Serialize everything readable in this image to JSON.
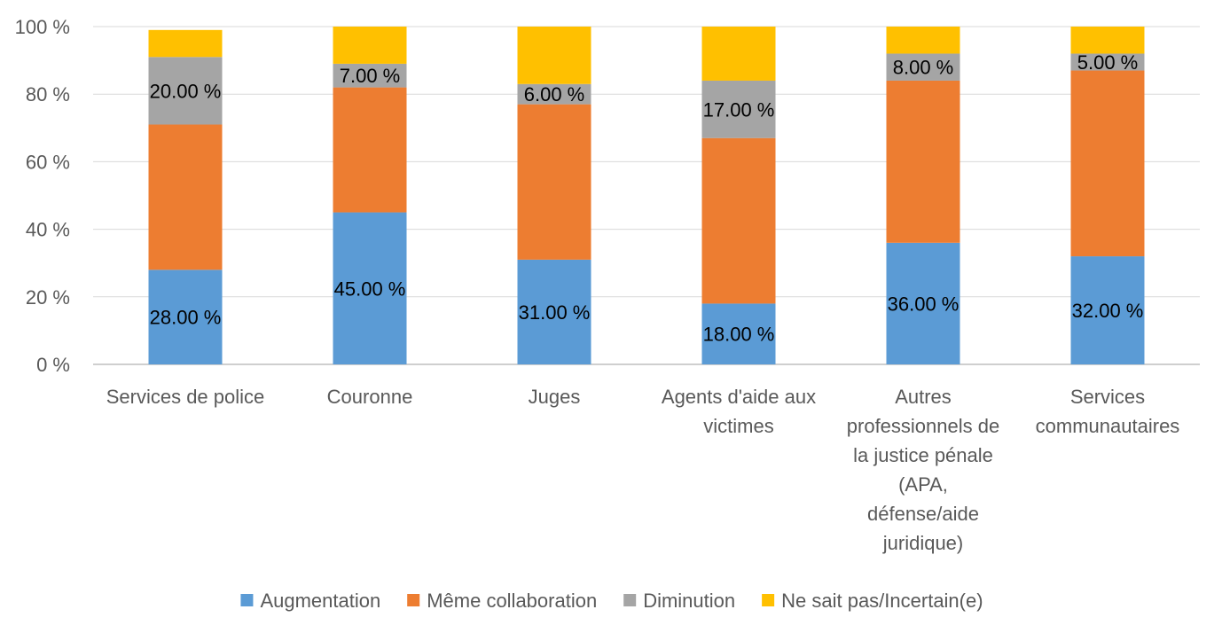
{
  "chart_data": {
    "type": "bar",
    "stacked": true,
    "y_unit_suffix": " %",
    "ylim": [
      0,
      100
    ],
    "yticks": [
      0,
      20,
      40,
      60,
      80,
      100
    ],
    "ytick_labels": [
      "0 %",
      "20 %",
      "40 %",
      "60 %",
      "80 %",
      "100 %"
    ],
    "grid": true,
    "legend_position": "bottom",
    "categories": [
      [
        "Services de police"
      ],
      [
        "Couronne"
      ],
      [
        "Juges"
      ],
      [
        "Agents d'aide aux",
        "victimes"
      ],
      [
        "Autres",
        "professionnels de",
        "la justice pénale",
        "(APA,",
        "défense/aide",
        "juridique)"
      ],
      [
        "Services",
        "communautaires"
      ]
    ],
    "series": [
      {
        "name": "Augmentation",
        "color": "#5B9BD5",
        "values": [
          28,
          45,
          31,
          18,
          36,
          32
        ],
        "labels": [
          "28.00 %",
          "45.00 %",
          "31.00 %",
          "18.00 %",
          "36.00 %",
          "32.00 %"
        ]
      },
      {
        "name": "Même collaboration",
        "color": "#ED7D31",
        "values": [
          43,
          37,
          46,
          49,
          48,
          55
        ],
        "labels": [
          "",
          "",
          "",
          "",
          "",
          ""
        ]
      },
      {
        "name": "Diminution",
        "color": "#A5A5A5",
        "values": [
          20,
          7,
          6,
          17,
          8,
          5
        ],
        "labels": [
          "20.00 %",
          "7.00 %",
          "6.00 %",
          "17.00 %",
          "8.00 %",
          "5.00 %"
        ]
      },
      {
        "name": "Ne sait pas/Incertain(e)",
        "color": "#FFC000",
        "values": [
          8,
          11,
          17,
          16,
          8,
          8
        ],
        "labels": [
          "",
          "",
          "",
          "",
          "",
          ""
        ]
      }
    ]
  }
}
